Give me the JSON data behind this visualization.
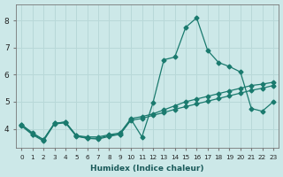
{
  "xlabel": "Humidex (Indice chaleur)",
  "ylabel": "",
  "xlim": [
    -0.5,
    23.5
  ],
  "ylim": [
    3.3,
    8.6
  ],
  "yticks": [
    4,
    5,
    6,
    7,
    8
  ],
  "xticks": [
    0,
    1,
    2,
    3,
    4,
    5,
    6,
    7,
    8,
    9,
    10,
    11,
    12,
    13,
    14,
    15,
    16,
    17,
    18,
    19,
    20,
    21,
    22,
    23
  ],
  "bg_color": "#cce8e8",
  "grid_color": "#b8d8d8",
  "line_color": "#1a7a6e",
  "line1": [
    4.15,
    3.8,
    3.6,
    4.2,
    4.25,
    3.75,
    3.65,
    3.65,
    3.75,
    3.8,
    4.35,
    3.7,
    4.95,
    6.55,
    6.65,
    7.75,
    8.1,
    6.9,
    6.45,
    6.3,
    6.1,
    4.75,
    4.65,
    5.0
  ],
  "line2": [
    4.15,
    3.85,
    3.6,
    4.2,
    4.25,
    3.75,
    3.7,
    3.7,
    3.78,
    3.85,
    4.38,
    4.45,
    4.55,
    4.7,
    4.85,
    5.0,
    5.1,
    5.2,
    5.3,
    5.4,
    5.5,
    5.6,
    5.65,
    5.72
  ],
  "line3": [
    4.1,
    3.78,
    3.55,
    4.18,
    4.22,
    3.72,
    3.65,
    3.62,
    3.72,
    3.8,
    4.32,
    4.38,
    4.5,
    4.6,
    4.72,
    4.82,
    4.92,
    5.02,
    5.12,
    5.22,
    5.32,
    5.42,
    5.5,
    5.6
  ],
  "marker": "D",
  "markersize": 2.5,
  "linewidth": 0.9
}
